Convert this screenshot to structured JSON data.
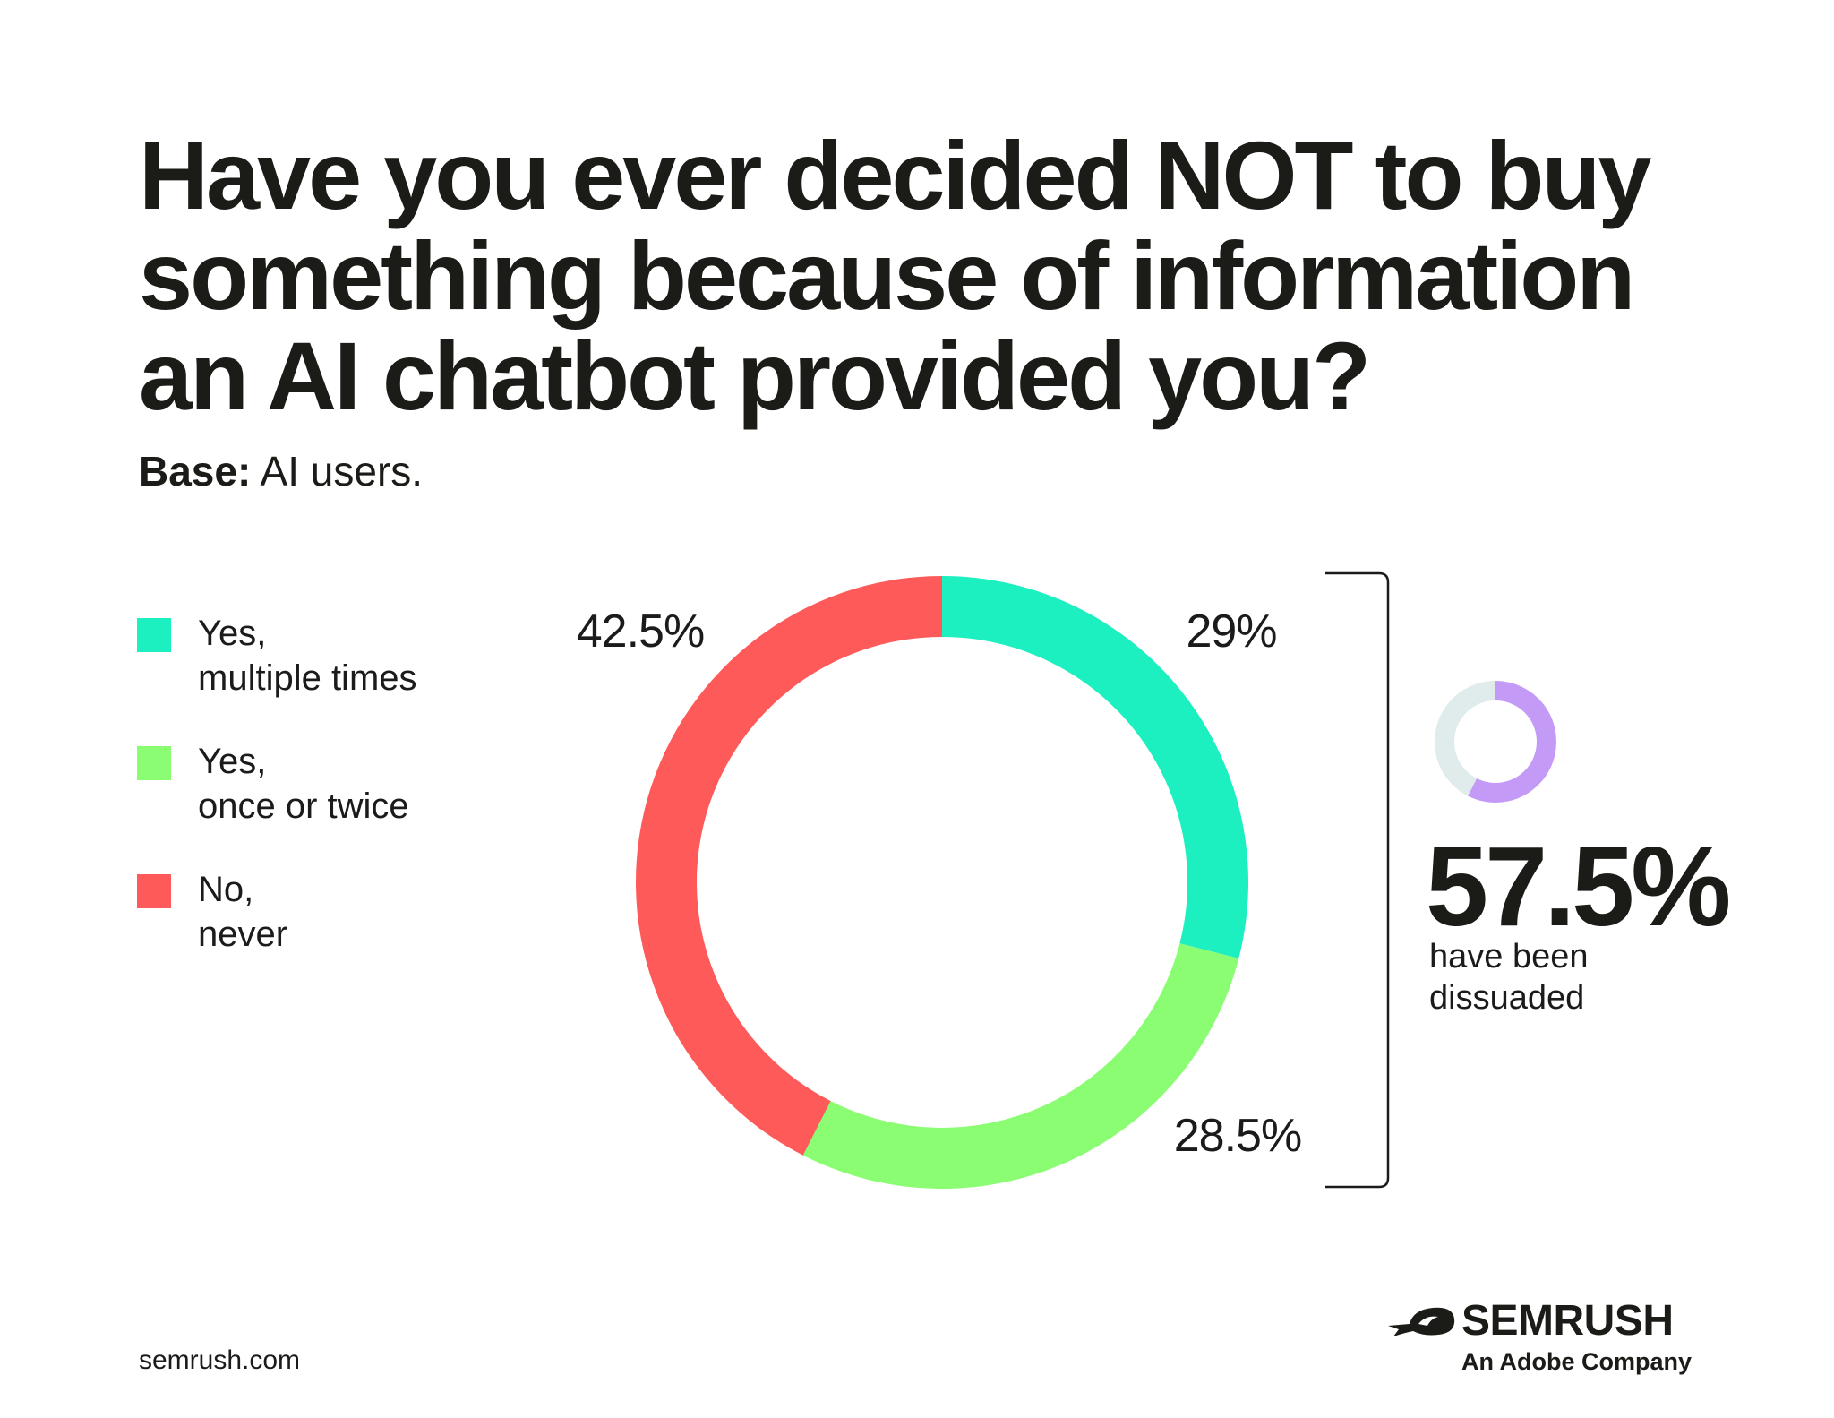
{
  "title_lines": [
    "Have you ever decided NOT to buy",
    "something because of information",
    "an AI chatbot provided you?"
  ],
  "base": {
    "label": "Base:",
    "text": "AI users."
  },
  "colors": {
    "yes_multiple": "#1cefc0",
    "yes_once": "#8afd73",
    "no_never": "#ff5a5a",
    "summary_accent": "#c39bf7",
    "summary_track": "#dfeceb",
    "text": "#1b1b1b"
  },
  "legend": [
    {
      "line1": "Yes,",
      "line2": "multiple times",
      "color": "#1cefc0"
    },
    {
      "line1": "Yes,",
      "line2": "once or twice",
      "color": "#8afd73"
    },
    {
      "line1": "No,",
      "line2": "never",
      "color": "#ff5a5a"
    }
  ],
  "chart_data": {
    "type": "pie",
    "donut": true,
    "title": "Have you ever decided NOT to buy something because of information an AI chatbot provided you?",
    "subtitle": "Base: AI users.",
    "categories": [
      "Yes, multiple times",
      "Yes, once or twice",
      "No, never"
    ],
    "values": [
      29,
      28.5,
      42.5
    ],
    "labels": [
      "29%",
      "28.5%",
      "42.5%"
    ],
    "colors": [
      "#1cefc0",
      "#8afd73",
      "#ff5a5a"
    ],
    "start_angle_deg": 0,
    "direction": "clockwise",
    "legend_position": "left",
    "annotation": {
      "value": 57.5,
      "text": "57.5%",
      "caption": "have been dissuaded"
    }
  },
  "summary": {
    "value": "57.5%",
    "percent": 57.5,
    "caption_lines": [
      "have been",
      "dissuaded"
    ]
  },
  "footer": {
    "url": "semrush.com",
    "brand": "SEMRUSH",
    "brand_tagline": "An Adobe Company"
  }
}
